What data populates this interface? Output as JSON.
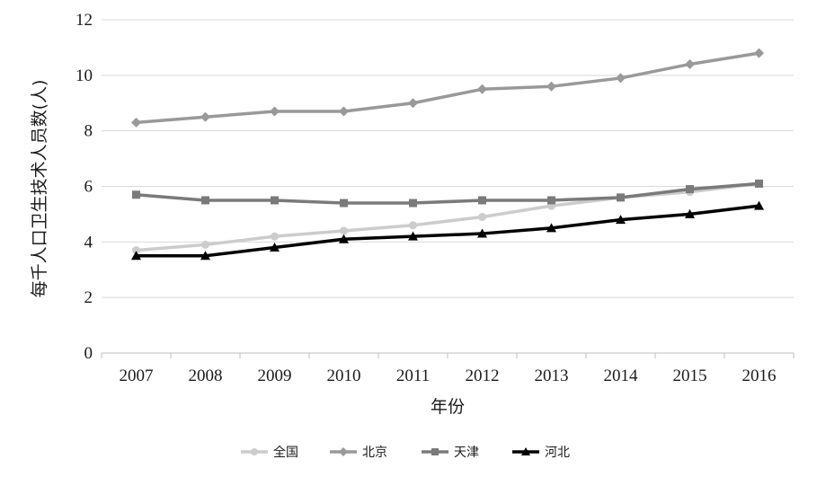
{
  "chart_data": {
    "type": "line",
    "title": "",
    "xlabel": "年份",
    "ylabel": "每千人口卫生技术人员数(人)",
    "categories": [
      "2007",
      "2008",
      "2009",
      "2010",
      "2011",
      "2012",
      "2013",
      "2014",
      "2015",
      "2016"
    ],
    "ylim": [
      0,
      12
    ],
    "yticks": [
      0,
      2,
      4,
      6,
      8,
      10,
      12
    ],
    "grid": true,
    "legend": "bottom",
    "series": [
      {
        "name": "全国",
        "color": "#cccccc",
        "marker": "circle",
        "values": [
          3.7,
          3.9,
          4.2,
          4.4,
          4.6,
          4.9,
          5.3,
          5.6,
          5.8,
          6.1
        ]
      },
      {
        "name": "北京",
        "color": "#999999",
        "marker": "diamond",
        "values": [
          8.3,
          8.5,
          8.7,
          8.7,
          9.0,
          9.5,
          9.6,
          9.9,
          10.4,
          10.8
        ]
      },
      {
        "name": "天津",
        "color": "#7a7a7a",
        "marker": "square",
        "values": [
          5.7,
          5.5,
          5.5,
          5.4,
          5.4,
          5.5,
          5.5,
          5.6,
          5.9,
          6.1
        ]
      },
      {
        "name": "河北",
        "color": "#000000",
        "marker": "triangle",
        "values": [
          3.5,
          3.5,
          3.8,
          4.1,
          4.2,
          4.3,
          4.5,
          4.8,
          5.0,
          5.3
        ]
      }
    ]
  }
}
